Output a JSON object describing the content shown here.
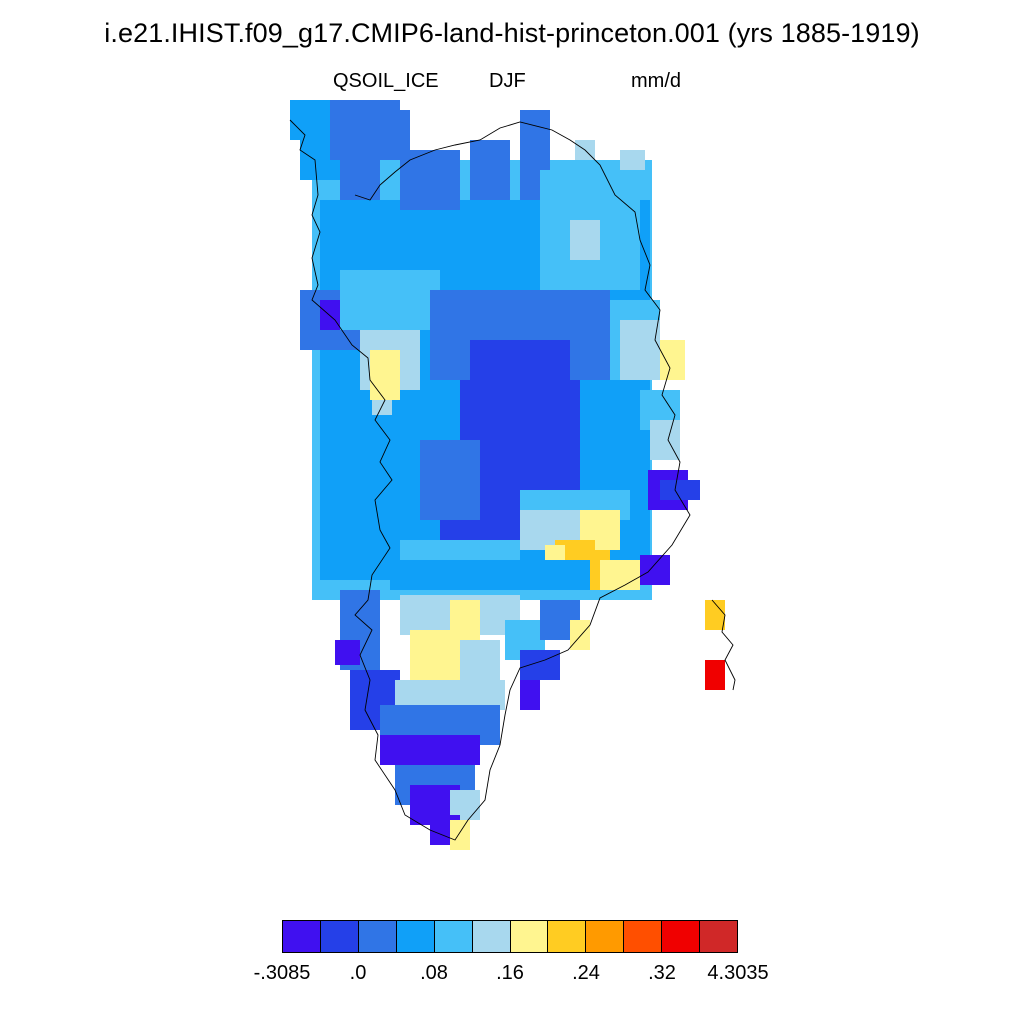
{
  "title": "i.e21.IHIST.f09_g17.CMIP6-land-hist-princeton.001 (yrs 1885-1919)",
  "subtitle_left": "QSOIL_ICE",
  "subtitle_center": "DJF",
  "subtitle_right": "mm/d",
  "colorbar": {
    "colors": [
      "#4010F0",
      "#2540E8",
      "#3075E6",
      "#10A0F8",
      "#45C0F8",
      "#A8D8EE",
      "#FFF590",
      "#FFCC22",
      "#FF9A00",
      "#FF4F00",
      "#F00000",
      "#D02828"
    ],
    "labels": [
      "-.3085",
      ".0",
      ".08",
      ".16",
      ".24",
      ".32",
      "4.3035"
    ]
  }
}
